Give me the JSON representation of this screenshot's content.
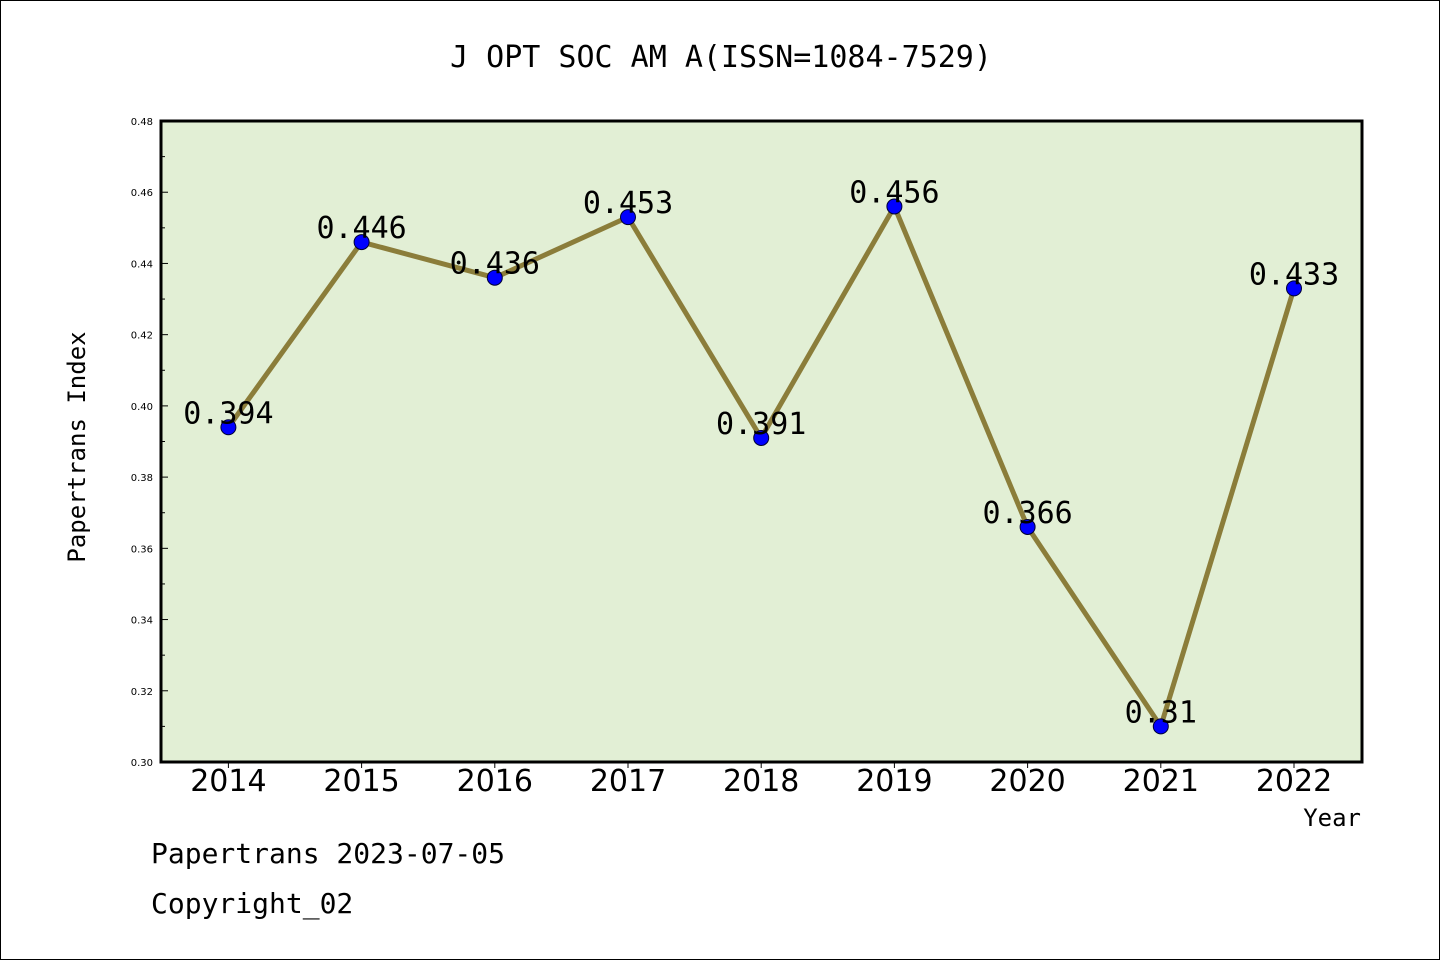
{
  "chart_data": {
    "type": "line",
    "title": "J OPT SOC AM A(ISSN=1084-7529)",
    "xlabel": "Year",
    "ylabel": "Papertrans Index",
    "categories": [
      "2014",
      "2015",
      "2016",
      "2017",
      "2018",
      "2019",
      "2020",
      "2021",
      "2022"
    ],
    "values": [
      0.394,
      0.446,
      0.436,
      0.453,
      0.391,
      0.456,
      0.366,
      0.31,
      0.433
    ],
    "data_labels": [
      "0.394",
      "0.446",
      "0.436",
      "0.453",
      "0.391",
      "0.456",
      "0.366",
      "0.31",
      "0.433"
    ],
    "ylim": [
      0.3,
      0.48
    ],
    "yticks": [
      "0.30",
      "0.32",
      "0.34",
      "0.36",
      "0.38",
      "0.40",
      "0.42",
      "0.44",
      "0.46",
      "0.48"
    ],
    "grid": false,
    "legend": "none",
    "colors": {
      "line": "#8b7d3a",
      "marker": "#0000ff",
      "plot_background": "#e2efd5",
      "frame": "#000000"
    }
  },
  "footer": {
    "date_line": "Papertrans 2023-07-05",
    "copyright": "Copyright_02"
  }
}
